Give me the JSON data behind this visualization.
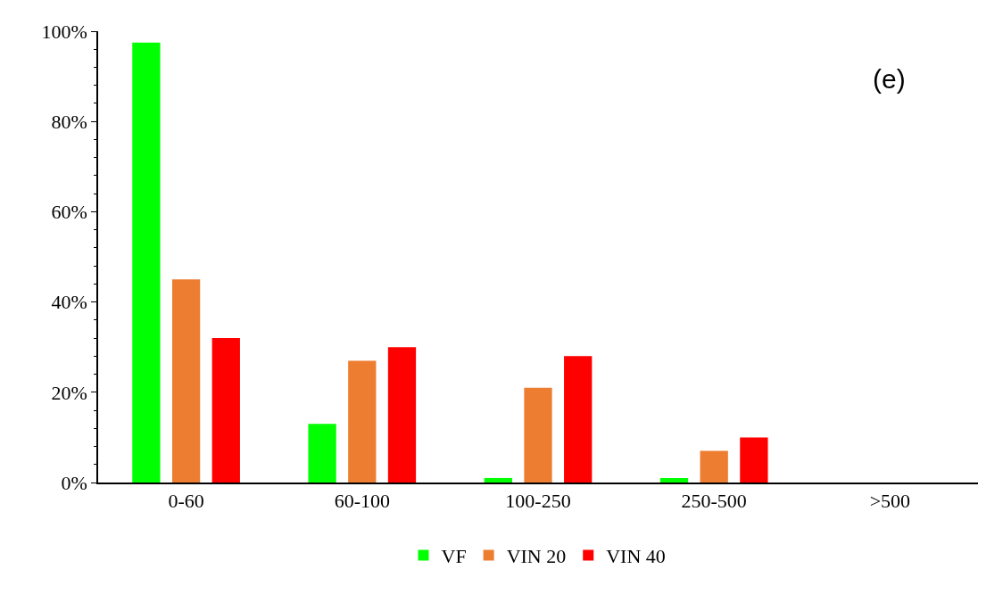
{
  "chart_data": {
    "type": "bar",
    "categories": [
      "0-60",
      "60-100",
      "100-250",
      "250-500",
      ">500"
    ],
    "series": [
      {
        "name": "VF",
        "color": "#00ff00",
        "values": [
          97.5,
          13,
          1,
          1,
          0
        ]
      },
      {
        "name": "VIN 20",
        "color": "#ed7d31",
        "values": [
          45,
          27,
          21,
          7,
          0
        ]
      },
      {
        "name": "VIN 40",
        "color": "#ff0000",
        "values": [
          32,
          30,
          28,
          10,
          0
        ]
      }
    ],
    "ylim": [
      0,
      100
    ],
    "yticks": [
      {
        "value": 0,
        "label": "0%"
      },
      {
        "value": 20,
        "label": "20%"
      },
      {
        "value": 40,
        "label": "40%"
      },
      {
        "value": 60,
        "label": "60%"
      },
      {
        "value": 80,
        "label": "80%"
      },
      {
        "value": 100,
        "label": "100%"
      }
    ],
    "annotations": [
      "(e)"
    ],
    "legend": "bottom"
  }
}
